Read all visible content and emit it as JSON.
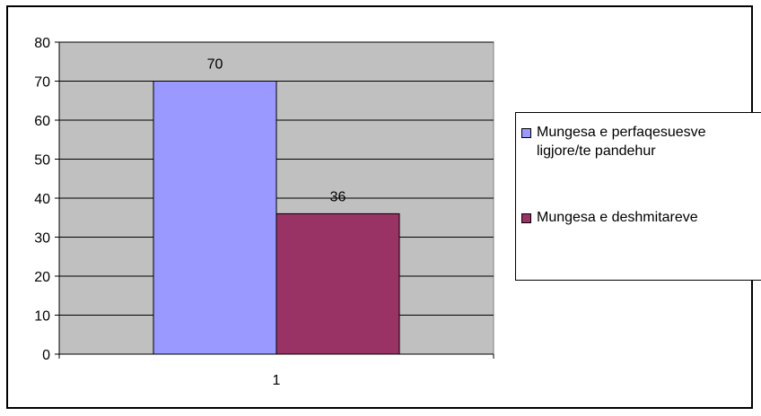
{
  "chart_data": {
    "type": "bar",
    "categories": [
      "1"
    ],
    "series": [
      {
        "name": "Mungesa e perfaqesuesve ligjore/te pandehur",
        "values": [
          70
        ],
        "color": "#9999FF"
      },
      {
        "name": "Mungesa e deshmitareve",
        "values": [
          36
        ],
        "color": "#993366"
      }
    ],
    "ylim": [
      0,
      80
    ],
    "yticks": [
      "0",
      "10",
      "20",
      "30",
      "40",
      "50",
      "60",
      "70",
      "80"
    ],
    "grid": true,
    "plot_background": "#C0C0C0",
    "legend_position": "right"
  }
}
